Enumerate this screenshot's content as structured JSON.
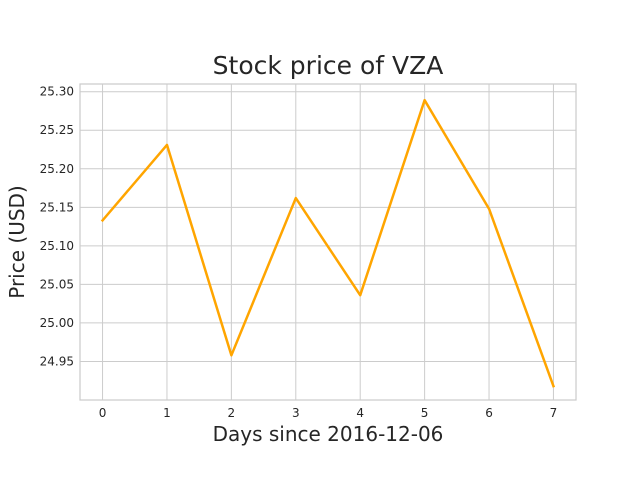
{
  "chart_data": {
    "type": "line",
    "title": "Stock price of VZA",
    "xlabel": "Days since 2016-12-06",
    "ylabel": "Price (USD)",
    "x": [
      0,
      1,
      2,
      3,
      4,
      5,
      6,
      7
    ],
    "series": [
      {
        "values": [
          25.133,
          25.231,
          24.958,
          25.162,
          25.036,
          25.289,
          25.148,
          24.918
        ],
        "color": "#ffa500"
      }
    ],
    "xlim": [
      -0.35,
      7.35
    ],
    "ylim": [
      24.9,
      25.31
    ],
    "xticks": [
      0,
      1,
      2,
      3,
      4,
      5,
      6,
      7
    ],
    "xtick_labels": [
      "0",
      "1",
      "2",
      "3",
      "4",
      "5",
      "6",
      "7"
    ],
    "yticks": [
      24.95,
      25.0,
      25.05,
      25.1,
      25.15,
      25.2,
      25.25,
      25.3
    ],
    "ytick_labels": [
      "24.95",
      "25.00",
      "25.05",
      "25.10",
      "25.15",
      "25.20",
      "25.25",
      "25.30"
    ],
    "grid": true,
    "style": {
      "grid_color": "#cccccc",
      "spine_color": "#cccccc",
      "text_color": "#262626"
    }
  }
}
